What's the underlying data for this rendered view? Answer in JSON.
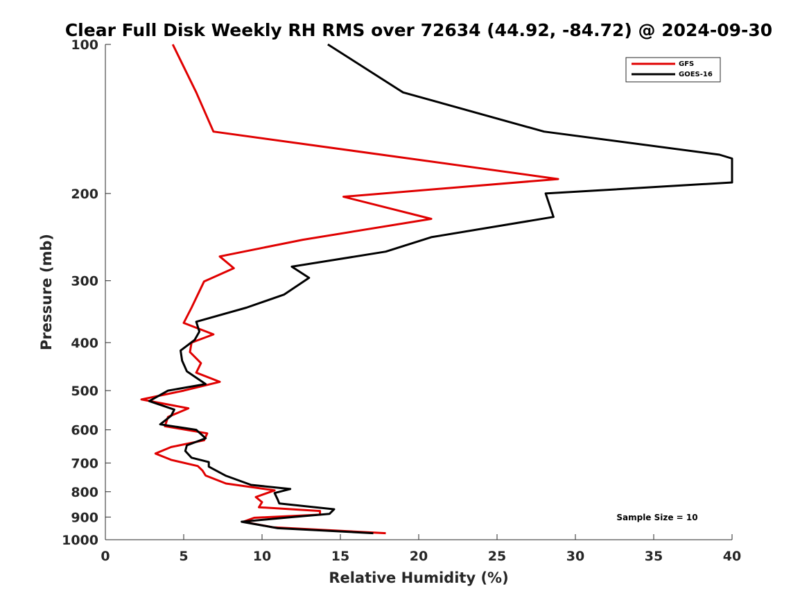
{
  "chart_data": {
    "type": "line",
    "title": "Clear Full Disk Weekly RH RMS over 72634 (44.92, -84.72) @ 2024-09-30",
    "xlabel": "Relative Humidity (%)",
    "ylabel": "Pressure (mb)",
    "xlim": [
      0,
      40
    ],
    "ylim": [
      100,
      1000
    ],
    "yscale": "log",
    "reverse_y": true,
    "xticks": [
      0,
      5,
      10,
      15,
      20,
      25,
      30,
      35,
      40
    ],
    "yticks": [
      100,
      200,
      300,
      400,
      500,
      600,
      700,
      800,
      900,
      1000
    ],
    "legend_location": "top-right",
    "annotation": "Sample Size = 10",
    "series": [
      {
        "name": "GFS",
        "color": "#e00000",
        "points": [
          [
            4.3,
            100
          ],
          [
            5.8,
            125
          ],
          [
            6.9,
            150
          ],
          [
            19.4,
            170
          ],
          [
            28.9,
            187
          ],
          [
            15.2,
            203
          ],
          [
            20.8,
            225
          ],
          [
            12.6,
            248
          ],
          [
            7.3,
            268
          ],
          [
            8.2,
            283
          ],
          [
            6.3,
            301
          ],
          [
            5.9,
            320
          ],
          [
            5.5,
            340
          ],
          [
            5.0,
            365
          ],
          [
            6.9,
            385
          ],
          [
            5.5,
            400
          ],
          [
            5.4,
            418
          ],
          [
            6.1,
            440
          ],
          [
            5.8,
            460
          ],
          [
            7.3,
            480
          ],
          [
            5.0,
            500
          ],
          [
            2.3,
            521
          ],
          [
            5.3,
            543
          ],
          [
            4.0,
            565
          ],
          [
            3.8,
            590
          ],
          [
            6.5,
            610
          ],
          [
            6.3,
            630
          ],
          [
            4.2,
            650
          ],
          [
            3.2,
            670
          ],
          [
            4.2,
            690
          ],
          [
            5.9,
            710
          ],
          [
            6.2,
            725
          ],
          [
            6.4,
            742
          ],
          [
            7.7,
            770
          ],
          [
            10.8,
            795
          ],
          [
            9.6,
            820
          ],
          [
            10.0,
            840
          ],
          [
            9.8,
            860
          ],
          [
            13.7,
            875
          ],
          [
            13.7,
            890
          ],
          [
            9.5,
            903
          ],
          [
            8.8,
            920
          ],
          [
            10.7,
            944
          ],
          [
            17.9,
            970
          ]
        ]
      },
      {
        "name": "GOES-16",
        "color": "#000000",
        "points": [
          [
            14.2,
            100
          ],
          [
            19.0,
            125
          ],
          [
            28.0,
            150
          ],
          [
            39.2,
            167
          ],
          [
            40.0,
            170
          ],
          [
            40.0,
            190
          ],
          [
            28.1,
            200
          ],
          [
            28.6,
            223
          ],
          [
            20.8,
            245
          ],
          [
            17.9,
            262
          ],
          [
            11.9,
            281
          ],
          [
            13.0,
            296
          ],
          [
            11.4,
            320
          ],
          [
            9.0,
            340
          ],
          [
            5.8,
            363
          ],
          [
            6.0,
            380
          ],
          [
            5.7,
            395
          ],
          [
            4.8,
            415
          ],
          [
            4.9,
            435
          ],
          [
            5.2,
            457
          ],
          [
            6.4,
            485
          ],
          [
            4.0,
            500
          ],
          [
            2.8,
            525
          ],
          [
            4.4,
            546
          ],
          [
            4.2,
            562
          ],
          [
            3.5,
            585
          ],
          [
            5.8,
            600
          ],
          [
            6.4,
            624
          ],
          [
            5.2,
            645
          ],
          [
            5.1,
            662
          ],
          [
            5.5,
            683
          ],
          [
            6.6,
            697
          ],
          [
            6.6,
            712
          ],
          [
            7.7,
            743
          ],
          [
            9.3,
            775
          ],
          [
            11.8,
            790
          ],
          [
            10.8,
            805
          ],
          [
            11.0,
            830
          ],
          [
            11.1,
            845
          ],
          [
            14.6,
            868
          ],
          [
            14.3,
            887
          ],
          [
            12.0,
            900
          ],
          [
            8.7,
            920
          ],
          [
            11.0,
            948
          ],
          [
            17.1,
            970
          ]
        ]
      }
    ]
  }
}
